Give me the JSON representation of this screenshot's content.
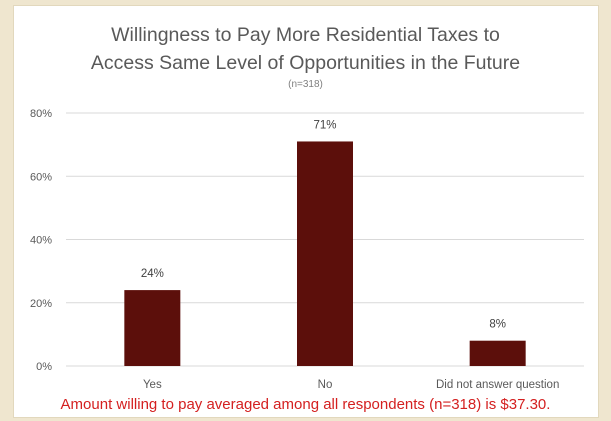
{
  "chart_data": {
    "type": "bar",
    "title_lines": [
      "Willingness to Pay More Residential Taxes to",
      "Access Same Level of Opportunities in the Future"
    ],
    "subtitle": "(n=318)",
    "categories": [
      "Yes",
      "No",
      "Did not answer question"
    ],
    "values": [
      24,
      71,
      8
    ],
    "data_labels": [
      "24%",
      "71%",
      "8%"
    ],
    "ylim": [
      0,
      80
    ],
    "yticks": [
      0,
      20,
      40,
      60,
      80
    ],
    "ytick_labels": [
      "0%",
      "20%",
      "40%",
      "60%",
      "80%"
    ],
    "grid": true,
    "bar_color": "#5c0f0b",
    "grid_color": "#d9d9d9",
    "legend": "none"
  },
  "footnote": "Amount willing to pay averaged among all respondents (n=318) is $37.30.",
  "colors": {
    "background": "#efe6cf",
    "panel": "#ffffff",
    "title_text": "#595959",
    "axis_text": "#595959",
    "footnote_text": "#d42020"
  }
}
